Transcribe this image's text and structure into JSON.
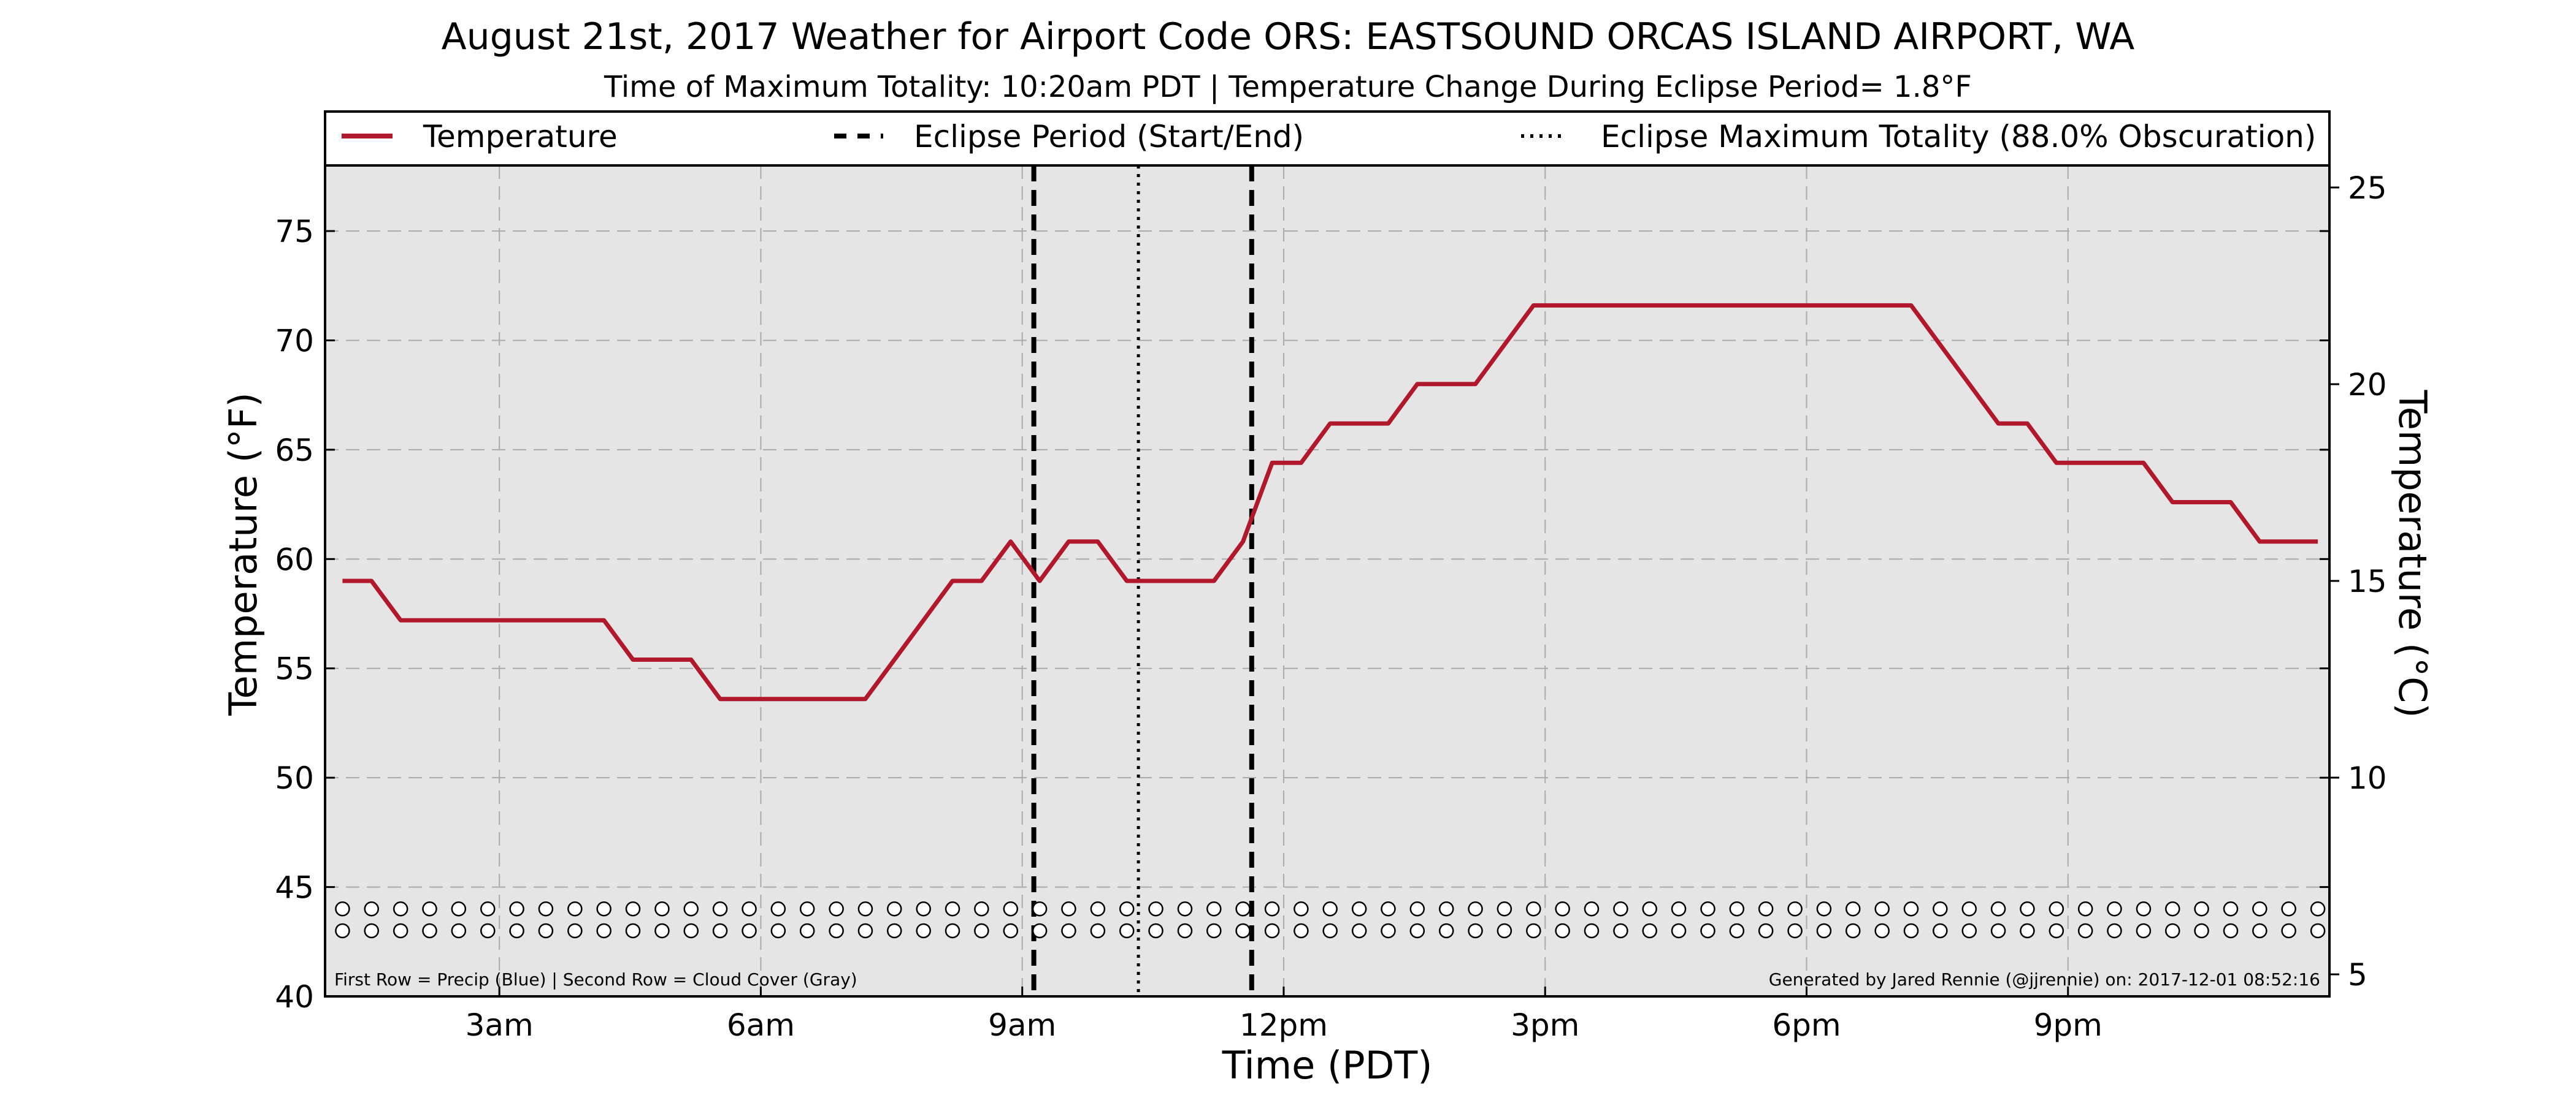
{
  "chart_data": {
    "type": "line",
    "title": "August 21st, 2017 Weather for Airport Code ORS: EASTSOUND ORCAS ISLAND AIRPORT, WA",
    "subtitle": "Time of Maximum Totality: 10:20am PDT | Temperature Change During Eclipse Period= 1.8°F",
    "xlabel": "Time (PDT)",
    "ylabel": "Temperature (°F)",
    "ylabel_right": "Temperature (°C)",
    "xlim": [
      1.0,
      24.0
    ],
    "ylim": [
      40,
      78
    ],
    "ylim_right": [
      4.44,
      25.56
    ],
    "x_ticks": [
      {
        "value": 3,
        "label": "3am"
      },
      {
        "value": 6,
        "label": "6am"
      },
      {
        "value": 9,
        "label": "9am"
      },
      {
        "value": 12,
        "label": "12pm"
      },
      {
        "value": 15,
        "label": "3pm"
      },
      {
        "value": 18,
        "label": "6pm"
      },
      {
        "value": 21,
        "label": "9pm"
      }
    ],
    "y_ticks": [
      "40",
      "45",
      "50",
      "55",
      "60",
      "65",
      "70",
      "75"
    ],
    "y_ticks_right": [
      "5",
      "10",
      "15",
      "20",
      "25"
    ],
    "grid": true,
    "legend_position": "top",
    "legend": {
      "temperature": "Temperature",
      "eclipse_period": "Eclipse Period (Start/End)",
      "max_totality": "Eclipse Maximum Totality (88.0% Obscuration)"
    },
    "series": [
      {
        "name": "Temperature",
        "color": "#b2182b",
        "points": [
          [
            1.2,
            59.0
          ],
          [
            1.533,
            59.0
          ],
          [
            1.867,
            57.2
          ],
          [
            2.2,
            57.2
          ],
          [
            2.533,
            57.2
          ],
          [
            2.867,
            57.2
          ],
          [
            3.2,
            57.2
          ],
          [
            3.533,
            57.2
          ],
          [
            3.867,
            57.2
          ],
          [
            4.2,
            57.2
          ],
          [
            4.533,
            55.4
          ],
          [
            4.867,
            55.4
          ],
          [
            5.2,
            55.4
          ],
          [
            5.533,
            53.6
          ],
          [
            5.867,
            53.6
          ],
          [
            6.2,
            53.6
          ],
          [
            6.533,
            53.6
          ],
          [
            6.867,
            53.6
          ],
          [
            7.2,
            53.6
          ],
          [
            7.533,
            55.4
          ],
          [
            7.867,
            57.2
          ],
          [
            8.2,
            59.0
          ],
          [
            8.533,
            59.0
          ],
          [
            8.867,
            60.8
          ],
          [
            9.2,
            59.0
          ],
          [
            9.533,
            60.8
          ],
          [
            9.867,
            60.8
          ],
          [
            10.2,
            59.0
          ],
          [
            10.533,
            59.0
          ],
          [
            10.867,
            59.0
          ],
          [
            11.2,
            59.0
          ],
          [
            11.533,
            60.8
          ],
          [
            11.867,
            64.4
          ],
          [
            12.2,
            64.4
          ],
          [
            12.533,
            66.2
          ],
          [
            12.867,
            66.2
          ],
          [
            13.2,
            66.2
          ],
          [
            13.533,
            68.0
          ],
          [
            13.867,
            68.0
          ],
          [
            14.2,
            68.0
          ],
          [
            14.533,
            69.8
          ],
          [
            14.867,
            71.6
          ],
          [
            15.2,
            71.6
          ],
          [
            15.533,
            71.6
          ],
          [
            15.867,
            71.6
          ],
          [
            16.2,
            71.6
          ],
          [
            16.533,
            71.6
          ],
          [
            16.867,
            71.6
          ],
          [
            17.2,
            71.6
          ],
          [
            17.533,
            71.6
          ],
          [
            17.867,
            71.6
          ],
          [
            18.2,
            71.6
          ],
          [
            18.533,
            71.6
          ],
          [
            18.867,
            71.6
          ],
          [
            19.2,
            71.6
          ],
          [
            19.533,
            69.8
          ],
          [
            19.867,
            68.0
          ],
          [
            20.2,
            66.2
          ],
          [
            20.533,
            66.2
          ],
          [
            20.867,
            64.4
          ],
          [
            21.2,
            64.4
          ],
          [
            21.533,
            64.4
          ],
          [
            21.867,
            64.4
          ],
          [
            22.2,
            62.6
          ],
          [
            22.533,
            62.6
          ],
          [
            22.867,
            62.6
          ],
          [
            23.2,
            60.8
          ],
          [
            23.533,
            60.8
          ],
          [
            23.867,
            60.8
          ]
        ]
      }
    ],
    "eclipse_start": 9.133,
    "eclipse_end": 11.633,
    "max_totality": 10.333,
    "precip_row_y": 44.0,
    "cloud_row_y": 43.0,
    "observation_times": [
      1.2,
      1.533,
      1.867,
      2.2,
      2.533,
      2.867,
      3.2,
      3.533,
      3.867,
      4.2,
      4.533,
      4.867,
      5.2,
      5.533,
      5.867,
      6.2,
      6.533,
      6.867,
      7.2,
      7.533,
      7.867,
      8.2,
      8.533,
      8.867,
      9.2,
      9.533,
      9.867,
      10.2,
      10.533,
      10.867,
      11.2,
      11.533,
      11.867,
      12.2,
      12.533,
      12.867,
      13.2,
      13.533,
      13.867,
      14.2,
      14.533,
      14.867,
      15.2,
      15.533,
      15.867,
      16.2,
      16.533,
      16.867,
      17.2,
      17.533,
      17.867,
      18.2,
      18.533,
      18.867,
      19.2,
      19.533,
      19.867,
      20.2,
      20.533,
      20.867,
      21.2,
      21.533,
      21.867,
      22.2,
      22.533,
      22.867,
      23.2,
      23.533,
      23.867
    ],
    "footnote_left": "First Row = Precip (Blue) | Second Row = Cloud Cover (Gray)",
    "footnote_right": "Generated by Jared Rennie (@jjrennie) on: 2017-12-01 08:52:16",
    "colors": {
      "background": "#e5e5e5",
      "temperature": "#b2182b",
      "grid": "#aaaaaa",
      "eclipse_lines": "#000000"
    }
  }
}
